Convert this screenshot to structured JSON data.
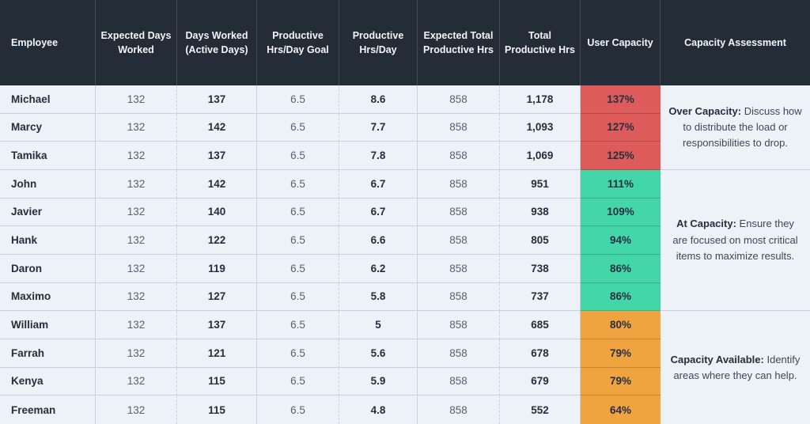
{
  "colors": {
    "header_bg": "#242C38",
    "header_text": "#F2F5F9",
    "row_bg": "#EDF2F9",
    "border": "#C9D1DC",
    "text_strong": "#272E3A",
    "text_muted": "#59616E",
    "over_capacity_red": "#DD5B5B",
    "at_capacity_green": "#43D6A9",
    "capacity_available_orange": "#F0A440"
  },
  "table": {
    "columns": [
      {
        "key": "employee",
        "label": "Employee"
      },
      {
        "key": "expected_days",
        "label": "Expected Days Worked"
      },
      {
        "key": "days_worked",
        "label": "Days Worked (Active Days)"
      },
      {
        "key": "goal",
        "label": "Productive Hrs/Day Goal"
      },
      {
        "key": "hrs_day",
        "label": "Productive Hrs/Day"
      },
      {
        "key": "expected_total",
        "label": "Expected Total Productive Hrs"
      },
      {
        "key": "total",
        "label": "Total Productive Hrs"
      },
      {
        "key": "capacity",
        "label": "User Capacity"
      },
      {
        "key": "assessment",
        "label": "Capacity Assessment"
      }
    ],
    "rows": [
      {
        "employee": "Michael",
        "expected_days": "132",
        "days_worked": "137",
        "goal": "6.5",
        "hrs_day": "8.6",
        "expected_total": "858",
        "total": "1,178",
        "capacity": "137%",
        "group": "over"
      },
      {
        "employee": "Marcy",
        "expected_days": "132",
        "days_worked": "142",
        "goal": "6.5",
        "hrs_day": "7.7",
        "expected_total": "858",
        "total": "1,093",
        "capacity": "127%",
        "group": "over"
      },
      {
        "employee": "Tamika",
        "expected_days": "132",
        "days_worked": "137",
        "goal": "6.5",
        "hrs_day": "7.8",
        "expected_total": "858",
        "total": "1,069",
        "capacity": "125%",
        "group": "over"
      },
      {
        "employee": "John",
        "expected_days": "132",
        "days_worked": "142",
        "goal": "6.5",
        "hrs_day": "6.7",
        "expected_total": "858",
        "total": "951",
        "capacity": "111%",
        "group": "at"
      },
      {
        "employee": "Javier",
        "expected_days": "132",
        "days_worked": "140",
        "goal": "6.5",
        "hrs_day": "6.7",
        "expected_total": "858",
        "total": "938",
        "capacity": "109%",
        "group": "at"
      },
      {
        "employee": "Hank",
        "expected_days": "132",
        "days_worked": "122",
        "goal": "6.5",
        "hrs_day": "6.6",
        "expected_total": "858",
        "total": "805",
        "capacity": "94%",
        "group": "at"
      },
      {
        "employee": "Daron",
        "expected_days": "132",
        "days_worked": "119",
        "goal": "6.5",
        "hrs_day": "6.2",
        "expected_total": "858",
        "total": "738",
        "capacity": "86%",
        "group": "at"
      },
      {
        "employee": "Maximo",
        "expected_days": "132",
        "days_worked": "127",
        "goal": "6.5",
        "hrs_day": "5.8",
        "expected_total": "858",
        "total": "737",
        "capacity": "86%",
        "group": "at"
      },
      {
        "employee": "William",
        "expected_days": "132",
        "days_worked": "137",
        "goal": "6.5",
        "hrs_day": "5",
        "expected_total": "858",
        "total": "685",
        "capacity": "80%",
        "group": "available"
      },
      {
        "employee": "Farrah",
        "expected_days": "132",
        "days_worked": "121",
        "goal": "6.5",
        "hrs_day": "5.6",
        "expected_total": "858",
        "total": "678",
        "capacity": "79%",
        "group": "available"
      },
      {
        "employee": "Kenya",
        "expected_days": "132",
        "days_worked": "115",
        "goal": "6.5",
        "hrs_day": "5.9",
        "expected_total": "858",
        "total": "679",
        "capacity": "79%",
        "group": "available"
      },
      {
        "employee": "Freeman",
        "expected_days": "132",
        "days_worked": "115",
        "goal": "6.5",
        "hrs_day": "4.8",
        "expected_total": "858",
        "total": "552",
        "capacity": "64%",
        "group": "available"
      }
    ],
    "groups": [
      {
        "id": "over",
        "color": "#DD5B5B",
        "row_start": 1,
        "row_end": 4,
        "assessment_bold": "Over Capacity:",
        "assessment_text": "Discuss how to distribute the load or responsibilities to drop."
      },
      {
        "id": "at",
        "color": "#43D6A9",
        "row_start": 4,
        "row_end": 9,
        "assessment_bold": "At Capacity:",
        "assessment_text": "Ensure they are focused on most critical items to maximize results."
      },
      {
        "id": "available",
        "color": "#F0A440",
        "row_start": 9,
        "row_end": 13,
        "assessment_bold": "Capacity Available:",
        "assessment_text": "Identify areas where they can help."
      }
    ]
  }
}
